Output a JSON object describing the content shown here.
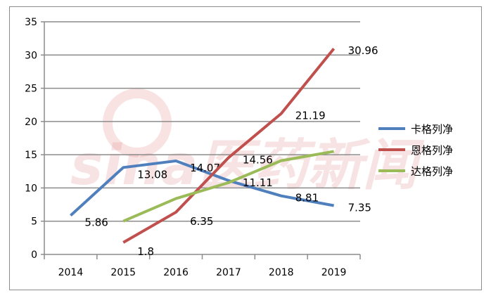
{
  "watermark": "sina医药新闻",
  "chart_data": {
    "type": "line",
    "title": "",
    "xlabel": "",
    "ylabel": "",
    "categories": [
      "2014",
      "2015",
      "2016",
      "2017",
      "2018",
      "2019"
    ],
    "ylim": [
      0,
      35
    ],
    "yticks": [
      0,
      5,
      10,
      15,
      20,
      25,
      30,
      35
    ],
    "grid": true,
    "legend_position": "right",
    "series": [
      {
        "name": "卡格列净",
        "color": "#4f7fbd",
        "values": [
          5.86,
          13.08,
          14.07,
          11.11,
          8.81,
          7.35
        ],
        "labels": [
          "5.86",
          "13.08",
          "14.07",
          "11.11",
          "8.81",
          "7.35"
        ]
      },
      {
        "name": "恩格列净",
        "color": "#c0504d",
        "values": [
          null,
          1.8,
          6.35,
          14.56,
          21.19,
          30.96
        ],
        "labels": [
          "",
          "1.8",
          "6.35",
          "14.56",
          "21.19",
          "30.96"
        ]
      },
      {
        "name": "达格列净",
        "color": "#9bbb59",
        "values": [
          null,
          5.0,
          8.4,
          10.8,
          14.1,
          15.5
        ],
        "labels": [
          "",
          "",
          "",
          "",
          "",
          ""
        ]
      }
    ]
  }
}
